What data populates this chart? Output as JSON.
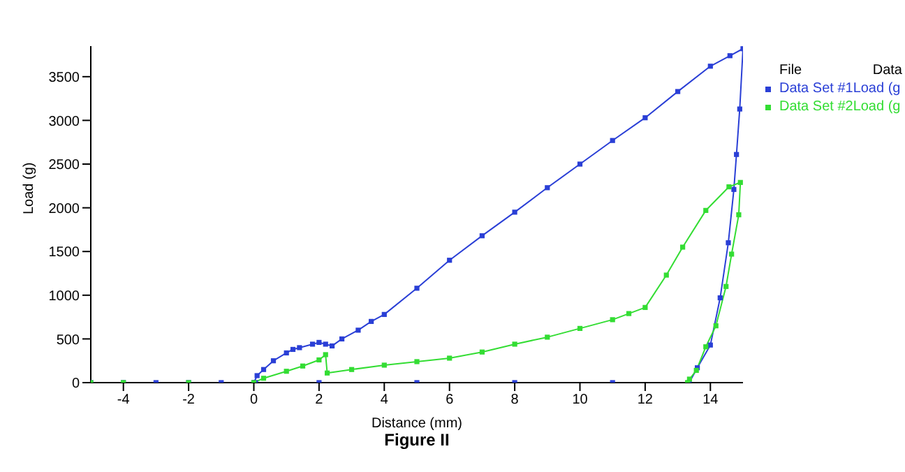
{
  "chart_data": {
    "type": "line",
    "title": "Figure II",
    "xlabel": "Distance (mm)",
    "ylabel": "Load (g)",
    "legend_title": "File Data",
    "legend": "top right",
    "marker": "square",
    "line_style": "solid",
    "grid": false,
    "xlim": [
      -5,
      15
    ],
    "xticks": [
      -4,
      -2,
      0,
      2,
      4,
      6,
      8,
      10,
      12,
      14
    ],
    "ylim": [
      0,
      3850
    ],
    "yticks": [
      0,
      500,
      1000,
      1500,
      2000,
      2500,
      3000,
      3500
    ],
    "series": [
      {
        "name": "Data Set #1Load (g",
        "color": "#2a3fd6",
        "x": [
          -5,
          -4,
          -3,
          -2,
          -1,
          0,
          0.1,
          0.3,
          0.6,
          1.0,
          1.2,
          1.4,
          1.8,
          2.0,
          2.2,
          2.4,
          2.7,
          3.2,
          3.6,
          4,
          5,
          6,
          7,
          8,
          9,
          10,
          11,
          12,
          13,
          14,
          14.6,
          15,
          14.9,
          14.8,
          14.72,
          14.55,
          14.3,
          14,
          13.6,
          13.35,
          11,
          8,
          5,
          2,
          0.05
        ],
        "values": [
          0,
          0,
          0,
          0,
          0,
          0,
          80,
          150,
          250,
          340,
          380,
          400,
          440,
          460,
          440,
          420,
          500,
          600,
          700,
          780,
          1080,
          1400,
          1680,
          1950,
          2230,
          2500,
          2770,
          3030,
          3330,
          3620,
          3740,
          3820,
          3130,
          2610,
          2210,
          1600,
          970,
          430,
          170,
          0,
          0,
          0,
          0,
          0,
          0
        ]
      },
      {
        "name": "Data Set #2Load (g",
        "color": "#33dd33",
        "x": [
          -5,
          -4,
          -2,
          0,
          0.3,
          1,
          1.5,
          2,
          2.2,
          2.25,
          3,
          4,
          5,
          6,
          7,
          8,
          9,
          10,
          11,
          11.5,
          12,
          12.65,
          13.15,
          13.86,
          14.57,
          14.92,
          14.87,
          14.65,
          14.48,
          14.17,
          13.86,
          13.57,
          13.36,
          13.3
        ],
        "values": [
          0,
          0,
          0,
          0,
          50,
          130,
          190,
          260,
          320,
          110,
          150,
          200,
          240,
          280,
          350,
          440,
          520,
          620,
          720,
          790,
          860,
          1230,
          1550,
          1970,
          2240,
          2290,
          1920,
          1470,
          1100,
          650,
          410,
          140,
          40,
          0
        ]
      }
    ]
  }
}
